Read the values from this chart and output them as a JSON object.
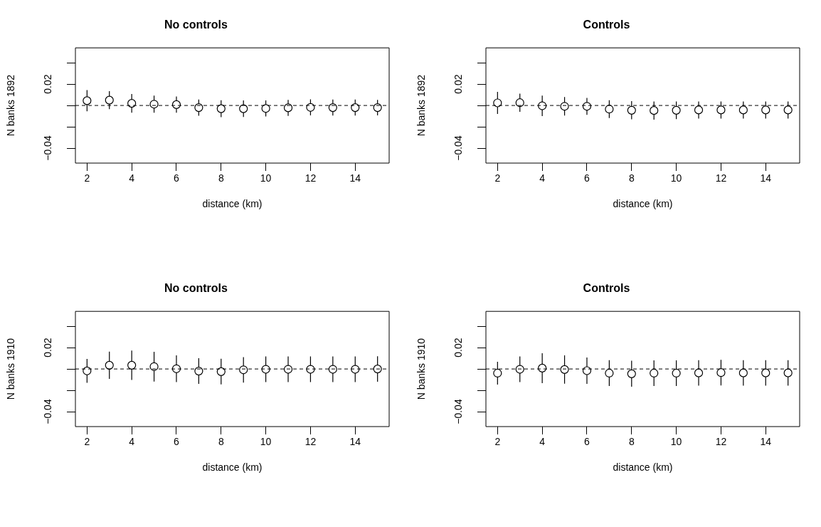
{
  "chart_data": [
    {
      "type": "scatter",
      "title": "No controls",
      "xlabel": "distance (km)",
      "ylabel": "N banks 1892",
      "color": "#000000",
      "marker": "circle",
      "xlim": [
        1.48,
        15.52
      ],
      "ylim": [
        -0.054,
        0.054
      ],
      "xticks": [
        2,
        4,
        6,
        8,
        10,
        12,
        14
      ],
      "yticks": [
        {
          "value": -0.04,
          "label": "−0.04"
        },
        {
          "value": -0.02,
          "label": null
        },
        {
          "value": 0,
          "label": null
        },
        {
          "value": 0.02,
          "label": "0.02"
        },
        {
          "value": 0.04,
          "label": null
        }
      ],
      "ref_lines": [
        {
          "axis": "y",
          "value": 0,
          "line_style": "dashed"
        }
      ],
      "x": [
        2,
        3,
        4,
        5,
        6,
        7,
        8,
        9,
        10,
        11,
        12,
        13,
        14,
        15
      ],
      "values": [
        0.0045,
        0.005,
        0.002,
        0.0012,
        0.0008,
        -0.002,
        -0.003,
        -0.003,
        -0.0028,
        -0.0022,
        -0.0018,
        -0.002,
        -0.002,
        -0.002
      ],
      "errors": [
        0.01,
        0.0085,
        0.0088,
        0.008,
        0.0076,
        0.0076,
        0.0079,
        0.0077,
        0.0075,
        0.0075,
        0.0075,
        0.0075,
        0.0075,
        0.0072
      ]
    },
    {
      "type": "scatter",
      "title": "Controls",
      "xlabel": "distance (km)",
      "ylabel": "N banks 1892",
      "color": "#000000",
      "marker": "circle",
      "xlim": [
        1.48,
        15.52
      ],
      "ylim": [
        -0.054,
        0.054
      ],
      "xticks": [
        2,
        4,
        6,
        8,
        10,
        12,
        14
      ],
      "yticks": [
        {
          "value": -0.04,
          "label": "−0.04"
        },
        {
          "value": -0.02,
          "label": null
        },
        {
          "value": 0,
          "label": null
        },
        {
          "value": 0.02,
          "label": "0.02"
        },
        {
          "value": 0.04,
          "label": null
        }
      ],
      "ref_lines": [
        {
          "axis": "y",
          "value": 0,
          "line_style": "dashed"
        }
      ],
      "x": [
        2,
        3,
        4,
        5,
        6,
        7,
        8,
        9,
        10,
        11,
        12,
        13,
        14,
        15
      ],
      "values": [
        0.0024,
        0.0026,
        -0.0003,
        -0.0008,
        -0.0008,
        -0.0034,
        -0.0045,
        -0.0047,
        -0.0045,
        -0.0042,
        -0.0042,
        -0.0042,
        -0.0042,
        -0.0042
      ],
      "errors": [
        0.0103,
        0.0085,
        0.0096,
        0.0087,
        0.0079,
        0.0083,
        0.0085,
        0.0085,
        0.0083,
        0.008,
        0.008,
        0.008,
        0.008,
        0.008
      ]
    },
    {
      "type": "scatter",
      "title": "No controls",
      "xlabel": "distance (km)",
      "ylabel": "N banks 1910",
      "color": "#000000",
      "marker": "circle",
      "xlim": [
        1.48,
        15.52
      ],
      "ylim": [
        -0.054,
        0.054
      ],
      "xticks": [
        2,
        4,
        6,
        8,
        10,
        12,
        14
      ],
      "yticks": [
        {
          "value": -0.04,
          "label": "−0.04"
        },
        {
          "value": -0.02,
          "label": null
        },
        {
          "value": 0,
          "label": null
        },
        {
          "value": 0.02,
          "label": "0.02"
        },
        {
          "value": 0.04,
          "label": null
        }
      ],
      "ref_lines": [
        {
          "axis": "y",
          "value": 0,
          "line_style": "dashed"
        }
      ],
      "x": [
        2,
        3,
        4,
        5,
        6,
        7,
        8,
        9,
        10,
        11,
        12,
        13,
        14,
        15
      ],
      "values": [
        -0.0018,
        0.0035,
        0.0035,
        0.0022,
        0.0002,
        -0.002,
        -0.0025,
        -0.0008,
        -0.0003,
        -0.0003,
        -0.0003,
        -0.0003,
        -0.0003,
        0
      ],
      "errors": [
        0.0112,
        0.0128,
        0.0138,
        0.0139,
        0.0125,
        0.012,
        0.012,
        0.0119,
        0.012,
        0.012,
        0.012,
        0.012,
        0.012,
        0.0119
      ]
    },
    {
      "type": "scatter",
      "title": "Controls",
      "xlabel": "distance (km)",
      "ylabel": "N banks 1910",
      "color": "#000000",
      "marker": "circle",
      "xlim": [
        1.48,
        15.52
      ],
      "ylim": [
        -0.054,
        0.054
      ],
      "xticks": [
        2,
        4,
        6,
        8,
        10,
        12,
        14
      ],
      "yticks": [
        {
          "value": -0.04,
          "label": "−0.04"
        },
        {
          "value": -0.02,
          "label": null
        },
        {
          "value": 0,
          "label": null
        },
        {
          "value": 0.02,
          "label": "0.02"
        },
        {
          "value": 0.04,
          "label": null
        }
      ],
      "ref_lines": [
        {
          "axis": "y",
          "value": 0,
          "line_style": "dashed"
        }
      ],
      "x": [
        2,
        3,
        4,
        5,
        6,
        7,
        8,
        9,
        10,
        11,
        12,
        13,
        14,
        15
      ],
      "values": [
        -0.0039,
        -0.0003,
        0.0008,
        -0.0005,
        -0.0016,
        -0.0039,
        -0.0045,
        -0.0039,
        -0.0039,
        -0.0037,
        -0.0034,
        -0.0037,
        -0.0037,
        -0.0037
      ],
      "errors": [
        0.0107,
        0.012,
        0.014,
        0.0133,
        0.0124,
        0.0121,
        0.0122,
        0.012,
        0.012,
        0.012,
        0.012,
        0.012,
        0.012,
        0.012
      ]
    }
  ]
}
